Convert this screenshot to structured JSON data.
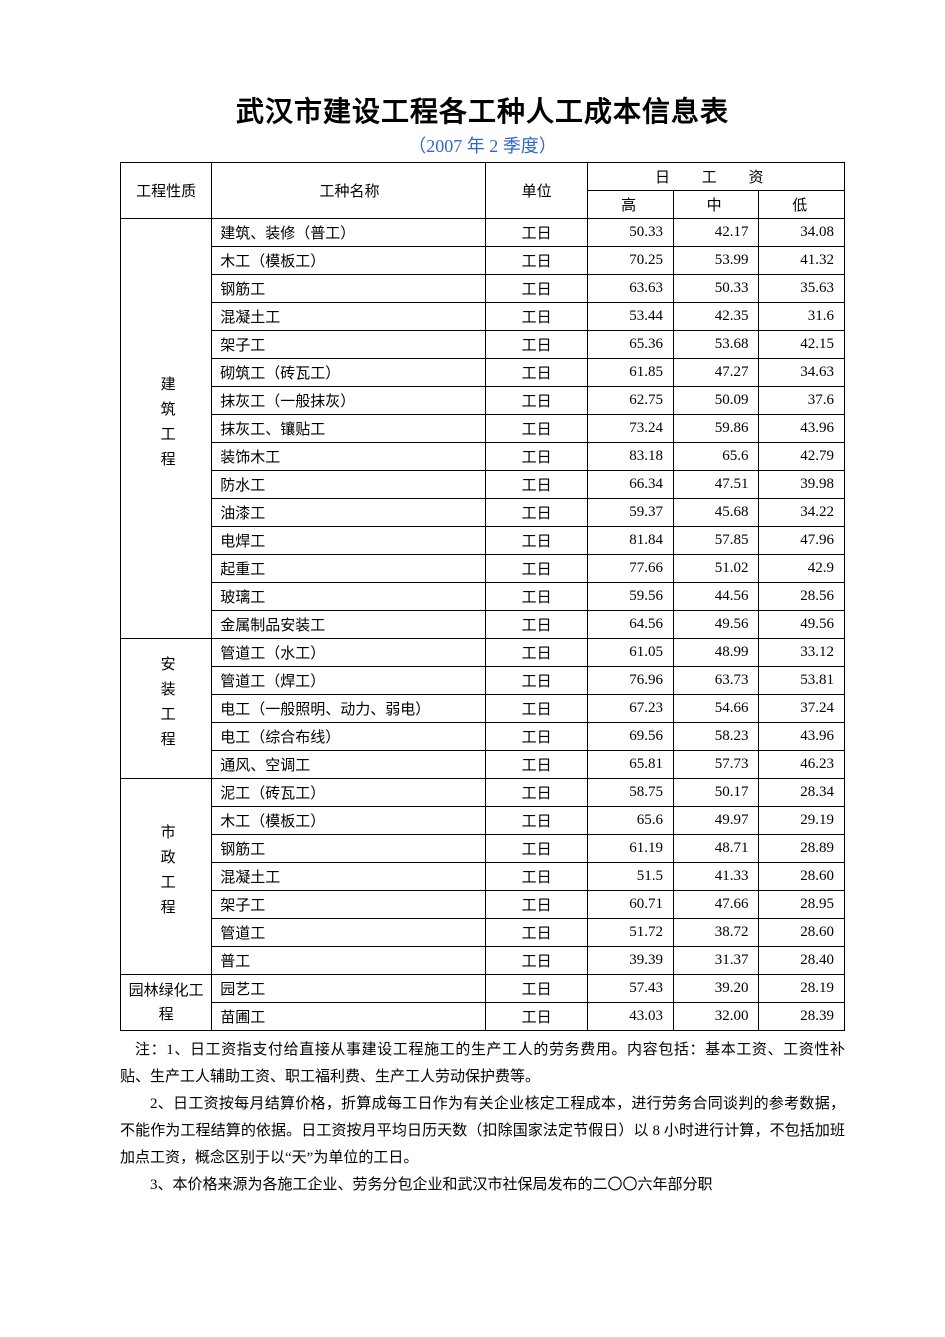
{
  "title": "武汉市建设工程各工种人工成本信息表",
  "subtitle": "（2007 年 2 季度）",
  "colors": {
    "text": "#000000",
    "subtitle": "#3366cc",
    "border": "#000000",
    "background": "#ffffff"
  },
  "fontsizes": {
    "title": 28,
    "subtitle": 18,
    "body": 15
  },
  "header": {
    "category": "工程性质",
    "name": "工种名称",
    "unit": "单位",
    "wage_group": "日 工 资",
    "high": "高",
    "mid": "中",
    "low": "低"
  },
  "groups": [
    {
      "category": "建筑工程",
      "vertical": true,
      "rows": [
        {
          "name": "建筑、装修（普工）",
          "unit": "工日",
          "high": "50.33",
          "mid": "42.17",
          "low": "34.08"
        },
        {
          "name": "木工（模板工）",
          "unit": "工日",
          "high": "70.25",
          "mid": "53.99",
          "low": "41.32"
        },
        {
          "name": "钢筋工",
          "unit": "工日",
          "high": "63.63",
          "mid": "50.33",
          "low": "35.63"
        },
        {
          "name": "混凝土工",
          "unit": "工日",
          "high": "53.44",
          "mid": "42.35",
          "low": "31.6"
        },
        {
          "name": "架子工",
          "unit": "工日",
          "high": "65.36",
          "mid": "53.68",
          "low": "42.15"
        },
        {
          "name": "砌筑工（砖瓦工）",
          "unit": "工日",
          "high": "61.85",
          "mid": "47.27",
          "low": "34.63"
        },
        {
          "name": "抹灰工（一般抹灰）",
          "unit": "工日",
          "high": "62.75",
          "mid": "50.09",
          "low": "37.6"
        },
        {
          "name": "抹灰工、镶贴工",
          "unit": "工日",
          "high": "73.24",
          "mid": "59.86",
          "low": "43.96"
        },
        {
          "name": "装饰木工",
          "unit": "工日",
          "high": "83.18",
          "mid": "65.6",
          "low": "42.79"
        },
        {
          "name": "防水工",
          "unit": "工日",
          "high": "66.34",
          "mid": "47.51",
          "low": "39.98"
        },
        {
          "name": "油漆工",
          "unit": "工日",
          "high": "59.37",
          "mid": "45.68",
          "low": "34.22"
        },
        {
          "name": "电焊工",
          "unit": "工日",
          "high": "81.84",
          "mid": "57.85",
          "low": "47.96"
        },
        {
          "name": "起重工",
          "unit": "工日",
          "high": "77.66",
          "mid": "51.02",
          "low": "42.9"
        },
        {
          "name": "玻璃工",
          "unit": "工日",
          "high": "59.56",
          "mid": "44.56",
          "low": "28.56"
        },
        {
          "name": "金属制品安装工",
          "unit": "工日",
          "high": "64.56",
          "mid": "49.56",
          "low": "49.56"
        }
      ]
    },
    {
      "category": "安装工程",
      "vertical": true,
      "rows": [
        {
          "name": "管道工（水工）",
          "unit": "工日",
          "high": "61.05",
          "mid": "48.99",
          "low": "33.12"
        },
        {
          "name": "管道工（焊工）",
          "unit": "工日",
          "high": "76.96",
          "mid": "63.73",
          "low": "53.81"
        },
        {
          "name": "电工（一般照明、动力、弱电）",
          "unit": "工日",
          "high": "67.23",
          "mid": "54.66",
          "low": "37.24"
        },
        {
          "name": "电工（综合布线）",
          "unit": "工日",
          "high": "69.56",
          "mid": "58.23",
          "low": "43.96"
        },
        {
          "name": "通风、空调工",
          "unit": "工日",
          "high": "65.81",
          "mid": "57.73",
          "low": "46.23"
        }
      ]
    },
    {
      "category": "市政工程",
      "vertical": true,
      "rows": [
        {
          "name": "泥工（砖瓦工）",
          "unit": "工日",
          "high": "58.75",
          "mid": "50.17",
          "low": "28.34"
        },
        {
          "name": "木工（模板工）",
          "unit": "工日",
          "high": "65.6",
          "mid": "49.97",
          "low": "29.19"
        },
        {
          "name": "钢筋工",
          "unit": "工日",
          "high": "61.19",
          "mid": "48.71",
          "low": "28.89"
        },
        {
          "name": "混凝土工",
          "unit": "工日",
          "high": "51.5",
          "mid": "41.33",
          "low": "28.60"
        },
        {
          "name": "架子工",
          "unit": "工日",
          "high": "60.71",
          "mid": "47.66",
          "low": "28.95"
        },
        {
          "name": "管道工",
          "unit": "工日",
          "high": "51.72",
          "mid": "38.72",
          "low": "28.60"
        },
        {
          "name": "普工",
          "unit": "工日",
          "high": "39.39",
          "mid": "31.37",
          "low": "28.40"
        }
      ]
    },
    {
      "category": "园林绿化工程",
      "vertical": false,
      "rows": [
        {
          "name": "园艺工",
          "unit": "工日",
          "high": "57.43",
          "mid": "39.20",
          "low": "28.19"
        },
        {
          "name": "苗圃工",
          "unit": "工日",
          "high": "43.03",
          "mid": "32.00",
          "low": "28.39"
        }
      ]
    }
  ],
  "notes": [
    "注：1、日工资指支付给直接从事建设工程施工的生产工人的劳务费用。内容包括：基本工资、工资性补贴、生产工人辅助工资、职工福利费、生产工人劳动保护费等。",
    "2、日工资按每月结算价格，折算成每工日作为有关企业核定工程成本，进行劳务合同谈判的参考数据，不能作为工程结算的依据。日工资按月平均日历天数（扣除国家法定节假日）以 8 小时进行计算，不包括加班加点工资，概念区别于以“天”为单位的工日。",
    "3、本价格来源为各施工企业、劳务分包企业和武汉市社保局发布的二〇〇六年部分职"
  ]
}
